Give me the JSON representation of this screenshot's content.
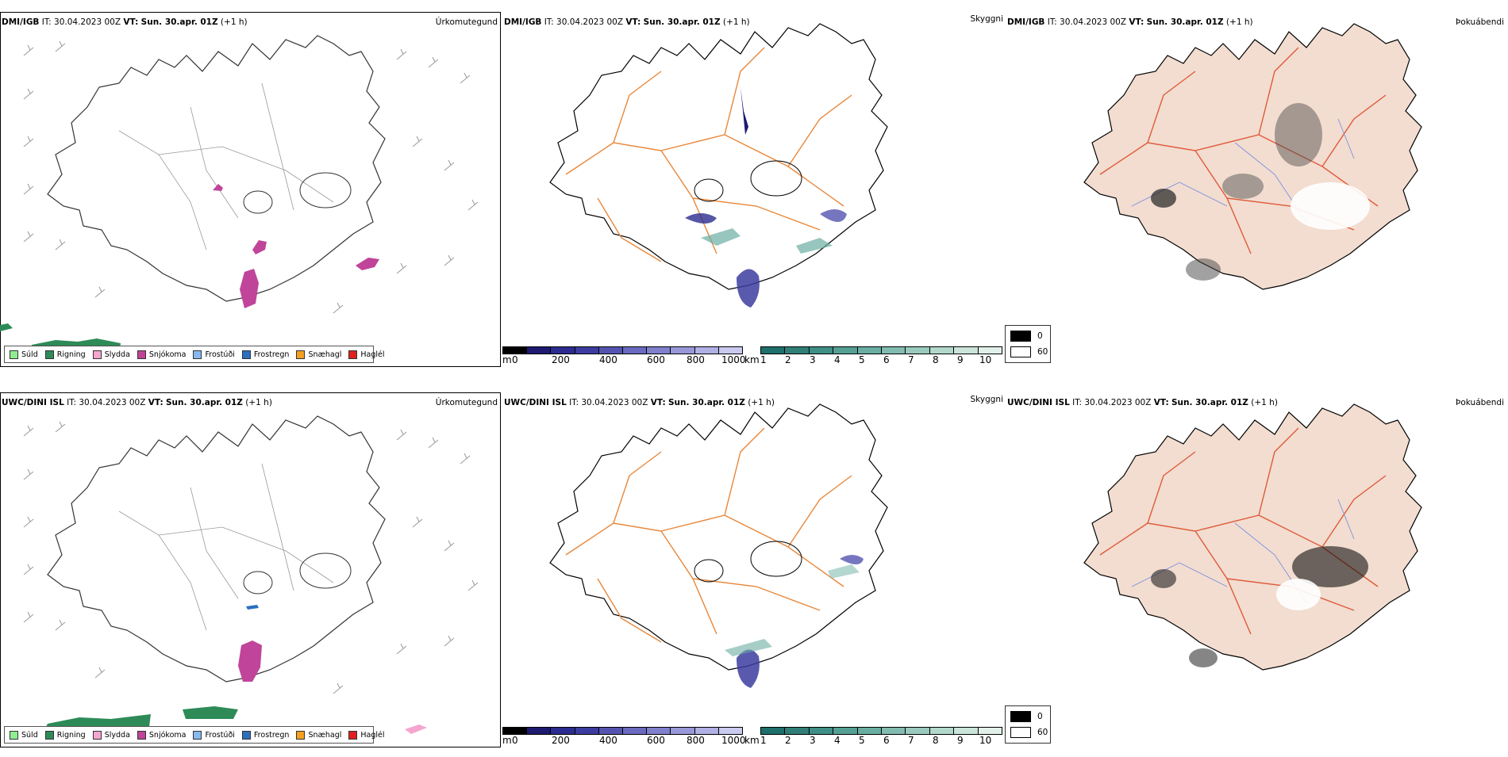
{
  "rows": [
    {
      "model": "DMI/IGB",
      "it_label": "IT:",
      "it_value": "30.04.2023 00Z",
      "vt_label": "VT:",
      "vt_value": "Sun. 30.apr. 01Z",
      "offset": "(+1 h)"
    },
    {
      "model": "UWC/DINI ISL",
      "it_label": "IT:",
      "it_value": "30.04.2023 00Z",
      "vt_label": "VT:",
      "vt_value": "Sun. 30.apr. 01Z",
      "offset": "(+1 h)"
    }
  ],
  "fields": {
    "precip_type": "Úrkomutegund",
    "visibility": "Skyggni",
    "fog": "Þokuábendi"
  },
  "precip_legend": [
    {
      "label": "Súld",
      "color": "#90ee90"
    },
    {
      "label": "Rigning",
      "color": "#2e8b57"
    },
    {
      "label": "Slydda",
      "color": "#f4a6d0"
    },
    {
      "label": "Snjókoma",
      "color": "#c0449a"
    },
    {
      "label": "Frostúði",
      "color": "#87b9f0"
    },
    {
      "label": "Frostregn",
      "color": "#2a6fc0"
    },
    {
      "label": "Snæhagl",
      "color": "#f5a020"
    },
    {
      "label": "Haglél",
      "color": "#e02020"
    }
  ],
  "vis_bar_m": {
    "unit": "m",
    "ticks": [
      "0",
      "200",
      "400",
      "600",
      "800",
      "1000"
    ],
    "colors": [
      "#000000",
      "#1e1a70",
      "#2c2c90",
      "#3c3ca0",
      "#5454b0",
      "#6a6ac0",
      "#8080cc",
      "#9898d8",
      "#b0b0e4",
      "#cacaf0"
    ]
  },
  "vis_bar_km": {
    "unit": "km",
    "ticks": [
      "1",
      "2",
      "3",
      "4",
      "5",
      "6",
      "7",
      "8",
      "9",
      "10"
    ],
    "colors": [
      "#1f6f6a",
      "#2f7f78",
      "#3f8f86",
      "#54a094",
      "#6aaea2",
      "#82bcb0",
      "#9acabe",
      "#b2d8cc",
      "#cae4da",
      "#e2f0ea"
    ]
  },
  "fog_legend": [
    {
      "label": "0",
      "color": "#000000"
    },
    {
      "label": "60",
      "color": "#ffffff"
    }
  ],
  "colors": {
    "roads": "#e8873a",
    "fog_land": "#f2ddd0",
    "fog_roads": "#e05a3a",
    "rivers": "#7a90e0",
    "coast": "#000000"
  }
}
